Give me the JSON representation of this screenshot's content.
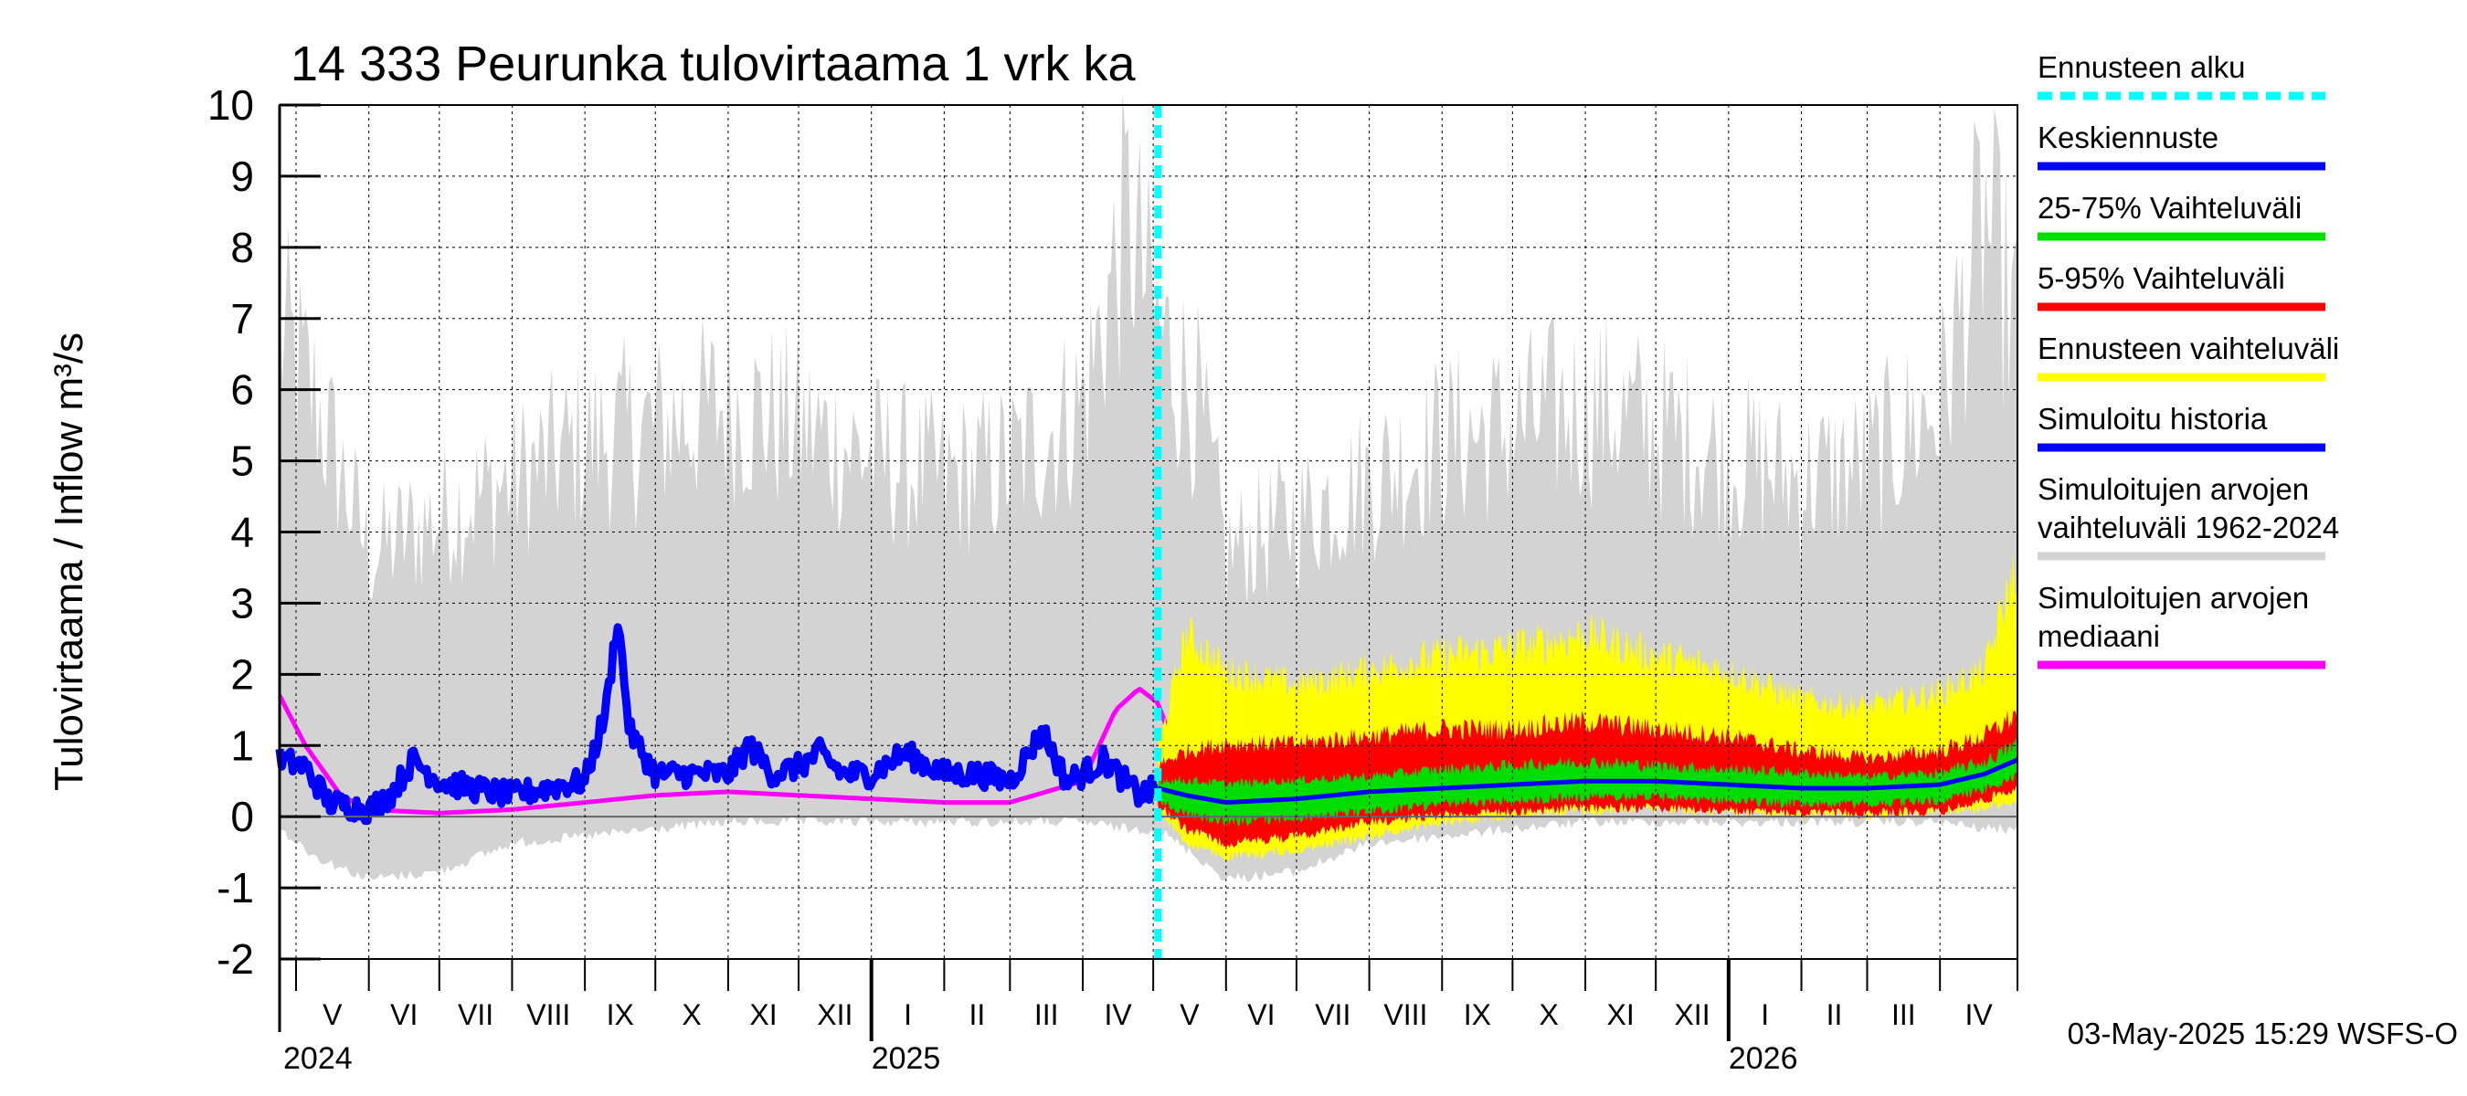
{
  "chart_data": {
    "type": "area",
    "title": "14 333 Peurunka tulovirtaama 1 vrk ka",
    "ylabel": "Tulovirtaama / Inflow    m³/s",
    "ylim": [
      -2,
      10
    ],
    "yticks": [
      -2,
      -1,
      0,
      1,
      2,
      3,
      4,
      5,
      6,
      7,
      8,
      9,
      10
    ],
    "xlim": [
      "2024-04-24",
      "2026-05-04"
    ],
    "forecast_start": "2025-05-03",
    "grid": true,
    "legend_position": "right",
    "months": [
      {
        "label": "V",
        "start": "2024-05-01"
      },
      {
        "label": "VI",
        "start": "2024-06-01"
      },
      {
        "label": "VII",
        "start": "2024-07-01"
      },
      {
        "label": "VIII",
        "start": "2024-08-01"
      },
      {
        "label": "IX",
        "start": "2024-09-01"
      },
      {
        "label": "X",
        "start": "2024-10-01"
      },
      {
        "label": "XI",
        "start": "2024-11-01"
      },
      {
        "label": "XII",
        "start": "2024-12-01"
      },
      {
        "label": "I",
        "start": "2025-01-01"
      },
      {
        "label": "II",
        "start": "2025-02-01"
      },
      {
        "label": "III",
        "start": "2025-03-01"
      },
      {
        "label": "IV",
        "start": "2025-04-01"
      },
      {
        "label": "V",
        "start": "2025-05-01"
      },
      {
        "label": "VI",
        "start": "2025-06-01"
      },
      {
        "label": "VII",
        "start": "2025-07-01"
      },
      {
        "label": "VIII",
        "start": "2025-08-01"
      },
      {
        "label": "IX",
        "start": "2025-09-01"
      },
      {
        "label": "X",
        "start": "2025-10-01"
      },
      {
        "label": "XI",
        "start": "2025-11-01"
      },
      {
        "label": "XII",
        "start": "2025-12-01"
      },
      {
        "label": "I",
        "start": "2026-01-01"
      },
      {
        "label": "II",
        "start": "2026-02-01"
      },
      {
        "label": "III",
        "start": "2026-03-01"
      },
      {
        "label": "IV",
        "start": "2026-04-01"
      }
    ],
    "years": [
      {
        "label": "2024",
        "at": "2024-04-24"
      },
      {
        "label": "2025",
        "at": "2025-01-01"
      },
      {
        "label": "2026",
        "at": "2026-01-01"
      }
    ],
    "series": [
      {
        "name": "Simuloitujen arvojen vaihteluväli 1962-2024",
        "color": "#d3d3d3",
        "kind": "band",
        "x": [
          "2024-04-24",
          "2024-05-10",
          "2024-06-01",
          "2024-07-01",
          "2024-08-01",
          "2024-09-01",
          "2024-10-01",
          "2024-11-01",
          "2024-12-01",
          "2025-01-01",
          "2025-02-01",
          "2025-03-01",
          "2025-04-01",
          "2025-04-20",
          "2025-05-03",
          "2025-05-20",
          "2025-06-01",
          "2025-07-01",
          "2025-08-01",
          "2025-09-01",
          "2025-10-01",
          "2025-11-01",
          "2025-12-01",
          "2026-01-01",
          "2026-02-01",
          "2026-03-01",
          "2026-04-01",
          "2026-04-20",
          "2026-05-04"
        ],
        "low": [
          -0.1,
          -0.5,
          -0.8,
          -0.7,
          -0.3,
          -0.2,
          -0.1,
          0.0,
          0.0,
          0.0,
          0.0,
          0.0,
          0.0,
          -0.1,
          -0.1,
          -0.5,
          -0.8,
          -0.7,
          -0.3,
          -0.2,
          -0.1,
          0.0,
          0.0,
          0.0,
          0.0,
          0.0,
          0.0,
          -0.1,
          -0.1
        ],
        "high": [
          6.5,
          5.5,
          3.5,
          4.0,
          4.5,
          5.0,
          5.2,
          5.5,
          5.2,
          4.8,
          4.5,
          4.7,
          5.5,
          8.0,
          6.5,
          5.5,
          3.5,
          4.0,
          4.5,
          5.0,
          5.2,
          5.5,
          5.2,
          4.8,
          4.5,
          4.7,
          5.5,
          8.0,
          6.5
        ]
      },
      {
        "name": "Simuloitujen arvojen mediaani",
        "color": "#ff00ff",
        "kind": "line",
        "x": [
          "2024-04-24",
          "2024-05-05",
          "2024-05-20",
          "2024-06-01",
          "2024-07-01",
          "2024-08-01",
          "2024-09-01",
          "2024-10-01",
          "2024-11-01",
          "2024-12-01",
          "2025-01-01",
          "2025-02-01",
          "2025-03-01",
          "2025-04-01",
          "2025-04-15",
          "2025-04-25",
          "2025-05-03",
          "2025-05-15",
          "2025-06-01",
          "2025-07-01",
          "2025-08-01",
          "2025-09-01",
          "2025-10-01",
          "2025-11-01",
          "2025-12-01",
          "2026-01-01",
          "2026-02-01",
          "2026-03-01",
          "2026-04-01",
          "2026-04-20",
          "2026-05-04"
        ],
        "values": [
          1.7,
          1.0,
          0.3,
          0.1,
          0.05,
          0.1,
          0.2,
          0.3,
          0.35,
          0.3,
          0.25,
          0.2,
          0.2,
          0.5,
          1.5,
          1.8,
          1.6,
          0.5,
          0.1,
          0.05,
          0.1,
          0.2,
          0.3,
          0.35,
          0.3,
          0.25,
          0.2,
          0.2,
          0.5,
          1.8,
          1.6
        ]
      },
      {
        "name": "Simuloitu historia",
        "color": "#0000ff",
        "kind": "line",
        "x": [
          "2024-04-24",
          "2024-05-05",
          "2024-05-15",
          "2024-06-01",
          "2024-06-10",
          "2024-06-20",
          "2024-07-01",
          "2024-07-15",
          "2024-08-01",
          "2024-08-15",
          "2024-09-01",
          "2024-09-10",
          "2024-09-15",
          "2024-09-20",
          "2024-10-01",
          "2024-10-15",
          "2024-11-01",
          "2024-11-10",
          "2024-11-20",
          "2024-12-01",
          "2024-12-10",
          "2024-12-20",
          "2025-01-01",
          "2025-01-15",
          "2025-02-01",
          "2025-02-15",
          "2025-03-01",
          "2025-03-15",
          "2025-03-25",
          "2025-04-01",
          "2025-04-10",
          "2025-04-25",
          "2025-05-03"
        ],
        "values": [
          0.8,
          0.7,
          0.2,
          0.1,
          0.3,
          0.8,
          0.5,
          0.4,
          0.3,
          0.4,
          0.5,
          1.5,
          2.8,
          1.2,
          0.6,
          0.6,
          0.6,
          1.0,
          0.6,
          0.7,
          0.9,
          0.6,
          0.6,
          0.9,
          0.6,
          0.6,
          0.5,
          1.2,
          0.5,
          0.6,
          0.8,
          0.3,
          0.4
        ]
      },
      {
        "name": "Ennusteen vaihteluväli",
        "color": "#ffff00",
        "kind": "band",
        "x": [
          "2025-05-03",
          "2025-05-15",
          "2025-06-01",
          "2025-07-01",
          "2025-08-01",
          "2025-09-01",
          "2025-10-01",
          "2025-11-01",
          "2025-12-01",
          "2026-01-01",
          "2026-02-01",
          "2026-03-01",
          "2026-04-01",
          "2026-04-20",
          "2026-05-04"
        ],
        "low": [
          0.2,
          -0.3,
          -0.5,
          -0.4,
          -0.2,
          0.0,
          0.1,
          0.15,
          0.2,
          0.15,
          0.1,
          0.1,
          0.15,
          0.2,
          0.3
        ],
        "high": [
          0.9,
          2.5,
          2.0,
          1.8,
          2.0,
          2.2,
          2.3,
          2.5,
          2.2,
          2.0,
          1.6,
          1.5,
          1.7,
          2.0,
          3.5
        ]
      },
      {
        "name": "5-95% Vaihteluväli",
        "color": "#ff0000",
        "kind": "band",
        "x": [
          "2025-05-03",
          "2025-05-15",
          "2025-06-01",
          "2025-07-01",
          "2025-08-01",
          "2025-09-01",
          "2025-10-01",
          "2025-11-01",
          "2025-12-01",
          "2026-01-01",
          "2026-02-01",
          "2026-03-01",
          "2026-04-01",
          "2026-04-20",
          "2026-05-04"
        ],
        "low": [
          0.25,
          -0.1,
          -0.3,
          -0.2,
          0.0,
          0.1,
          0.15,
          0.2,
          0.2,
          0.15,
          0.12,
          0.12,
          0.15,
          0.3,
          0.5
        ],
        "high": [
          0.7,
          0.9,
          1.0,
          1.0,
          1.1,
          1.2,
          1.2,
          1.3,
          1.2,
          1.1,
          0.9,
          0.8,
          0.9,
          1.1,
          1.4
        ]
      },
      {
        "name": "25-75% Vaihteluväli",
        "color": "#00dd00",
        "kind": "band",
        "x": [
          "2025-05-03",
          "2025-05-15",
          "2025-06-01",
          "2025-07-01",
          "2025-08-01",
          "2025-09-01",
          "2025-10-01",
          "2025-11-01",
          "2025-12-01",
          "2026-01-01",
          "2026-02-01",
          "2026-03-01",
          "2026-04-01",
          "2026-04-20",
          "2026-05-04"
        ],
        "low": [
          0.3,
          0.1,
          0.0,
          0.05,
          0.15,
          0.25,
          0.3,
          0.35,
          0.35,
          0.3,
          0.25,
          0.25,
          0.3,
          0.45,
          0.65
        ],
        "high": [
          0.5,
          0.5,
          0.45,
          0.5,
          0.55,
          0.65,
          0.7,
          0.75,
          0.7,
          0.65,
          0.6,
          0.55,
          0.6,
          0.75,
          1.0
        ]
      },
      {
        "name": "Keskiennuste",
        "color": "#0000ff",
        "kind": "line",
        "x": [
          "2025-05-03",
          "2025-05-15",
          "2025-06-01",
          "2025-07-01",
          "2025-08-01",
          "2025-09-01",
          "2025-10-01",
          "2025-11-01",
          "2025-12-01",
          "2026-01-01",
          "2026-02-01",
          "2026-03-01",
          "2026-04-01",
          "2026-04-20",
          "2026-05-04"
        ],
        "values": [
          0.4,
          0.3,
          0.2,
          0.25,
          0.35,
          0.4,
          0.45,
          0.5,
          0.5,
          0.45,
          0.4,
          0.4,
          0.45,
          0.6,
          0.8
        ]
      }
    ],
    "legend": [
      {
        "name": "Ennusteen alku",
        "color": "#00ffff",
        "style": "dashed"
      },
      {
        "name": "Keskiennuste",
        "color": "#0000ff",
        "style": "solid"
      },
      {
        "name": "25-75% Vaihteluväli",
        "color": "#00dd00",
        "style": "solid"
      },
      {
        "name": "5-95% Vaihteluväli",
        "color": "#ff0000",
        "style": "solid"
      },
      {
        "name": "Ennusteen vaihteluväli",
        "color": "#ffff00",
        "style": "solid"
      },
      {
        "name": "Simuloitu historia",
        "color": "#0000ff",
        "style": "solid"
      },
      {
        "name": "Simuloitujen arvojen|vaihteluväli 1962-2024",
        "color": "#d3d3d3",
        "style": "solid"
      },
      {
        "name": "Simuloitujen arvojen|mediaani",
        "color": "#ff00ff",
        "style": "solid"
      }
    ]
  },
  "footer": {
    "timestamp": "03-May-2025 15:29 WSFS-O"
  }
}
